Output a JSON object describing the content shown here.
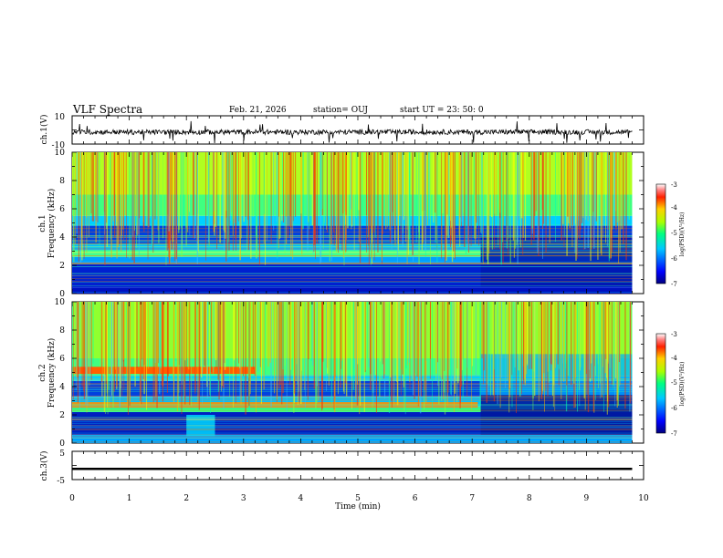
{
  "header": {
    "title": "VLF Spectra",
    "date": "Feb. 21, 2026",
    "station": "station= OUJ",
    "start_ut": "start  UT  =   23: 50: 0"
  },
  "chart_data": [
    {
      "type": "line",
      "panel": "ch1-waveform",
      "ylabel": "ch.1(V)",
      "ylim": [
        -10,
        10
      ],
      "yticks": [
        "10",
        "-10"
      ],
      "xlim": [
        0,
        10
      ]
    },
    {
      "type": "heatmap",
      "panel": "ch1-spectrogram",
      "ylabel": "ch.1\nFrequency (kHz)",
      "ylim": [
        0,
        10
      ],
      "yticks": [
        "0",
        "2",
        "4",
        "6",
        "8",
        "10"
      ],
      "colorbar": {
        "label": "log(PSD)(V²/Hz)",
        "ticks": [
          "-3",
          "-4",
          "-5",
          "-6",
          "-7"
        ],
        "range": [
          -7,
          -3
        ]
      }
    },
    {
      "type": "heatmap",
      "panel": "ch2-spectrogram",
      "ylabel": "ch.2\nFrequency (kHz)",
      "ylim": [
        0,
        10
      ],
      "yticks": [
        "0",
        "2",
        "4",
        "6",
        "8",
        "10"
      ],
      "colorbar": {
        "label": "log(PSD)(V²/Hz)",
        "ticks": [
          "-3",
          "-4",
          "-5",
          "-6",
          "-7"
        ],
        "range": [
          -7,
          -3
        ]
      }
    },
    {
      "type": "line",
      "panel": "ch3-waveform",
      "ylabel": "ch.3(V)",
      "ylim": [
        -5,
        5
      ],
      "yticks": [
        "5",
        "-5"
      ],
      "xlim": [
        0,
        10
      ],
      "level": -1.2
    }
  ],
  "xaxis": {
    "label": "Time  (min)",
    "ticks": [
      "0",
      "1",
      "2",
      "3",
      "4",
      "5",
      "6",
      "7",
      "8",
      "9",
      "10"
    ],
    "data_end_min": 9.8
  },
  "labels": {
    "ch1_wave": "ch.1(V)",
    "ch1_spec_a": "ch.1",
    "ch1_spec_b": "Frequency (kHz)",
    "ch2_spec_a": "ch.2",
    "ch2_spec_b": "Frequency (kHz)",
    "ch3_wave": "ch.3(V)",
    "colorbar_label": "log(PSD)(V²/Hz)"
  }
}
